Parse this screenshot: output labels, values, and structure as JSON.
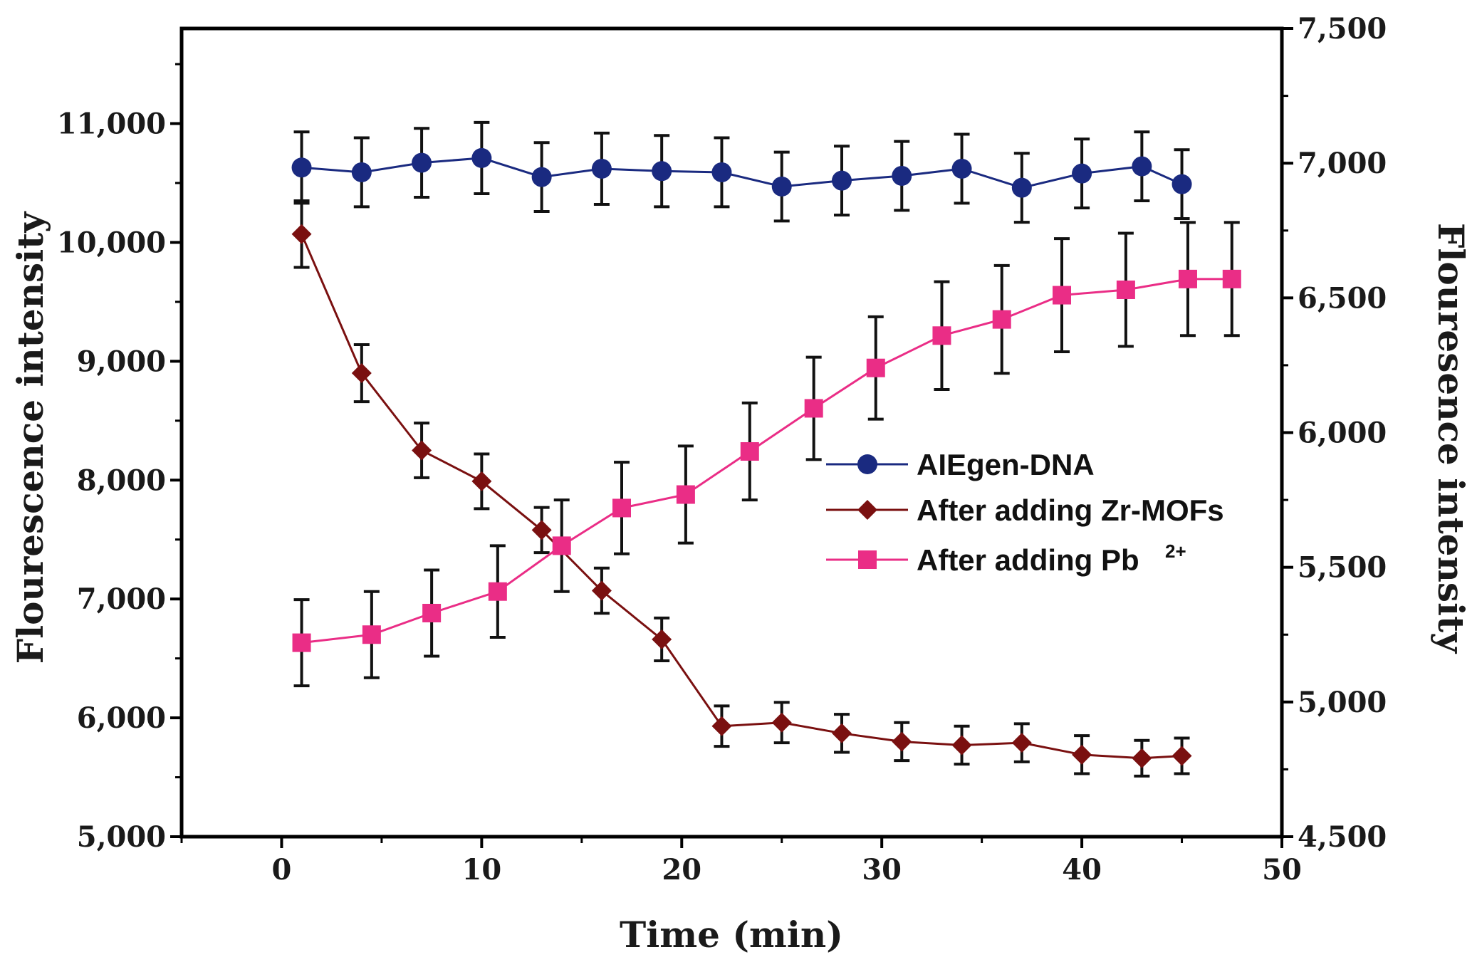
{
  "chart_data": {
    "type": "line",
    "title": "",
    "xlabel": "Time (min)",
    "ylabel_left": "Flourescence intensity",
    "ylabel_right": "Flouresence intensity",
    "xlim": [
      -5,
      50
    ],
    "ylim_left": [
      5000,
      11800
    ],
    "ylim_right": [
      4500,
      7500
    ],
    "x_ticks": [
      0,
      10,
      20,
      30,
      40,
      50
    ],
    "x_tick_labels": [
      "0",
      "10",
      "20",
      "30",
      "40",
      "50"
    ],
    "y_left_ticks": [
      5000,
      6000,
      7000,
      8000,
      9000,
      10000,
      11000
    ],
    "y_left_tick_labels": [
      "5,000",
      "6,000",
      "7,000",
      "8,000",
      "9,000",
      "10,000",
      "11,000"
    ],
    "y_right_ticks": [
      4500,
      5000,
      5500,
      6000,
      6500,
      7000,
      7500
    ],
    "y_right_tick_labels": [
      "4,500",
      "5,000",
      "5,500",
      "6,000",
      "6,500",
      "7,000",
      "7,500"
    ],
    "legend_position": "center-right",
    "series": [
      {
        "name": "AIEgen-DNA",
        "axis": "left",
        "color": "#1a2a80",
        "marker": "circle",
        "x": [
          1,
          4,
          7,
          10,
          13,
          16,
          19,
          22,
          25,
          28,
          31,
          34,
          37,
          40,
          43,
          45
        ],
        "y": [
          10630,
          10590,
          10670,
          10710,
          10550,
          10620,
          10600,
          10590,
          10470,
          10520,
          10560,
          10620,
          10460,
          10580,
          10640,
          10490
        ],
        "err": [
          300,
          290,
          290,
          300,
          290,
          300,
          300,
          290,
          290,
          290,
          290,
          290,
          290,
          290,
          290,
          290
        ]
      },
      {
        "name": "After adding Zr-MOFs",
        "axis": "left",
        "color": "#7a1010",
        "marker": "diamond",
        "x": [
          1,
          4,
          7,
          10,
          13,
          16,
          19,
          22,
          25,
          28,
          31,
          34,
          37,
          40,
          43,
          45
        ],
        "y": [
          10070,
          8900,
          8250,
          7990,
          7580,
          7070,
          6660,
          5930,
          5960,
          5870,
          5800,
          5770,
          5790,
          5690,
          5660,
          5680
        ],
        "err": [
          280,
          240,
          230,
          230,
          190,
          190,
          180,
          170,
          170,
          160,
          160,
          160,
          160,
          160,
          150,
          150
        ]
      },
      {
        "name": "After adding Pb",
        "name_superscript": "2+",
        "axis": "right",
        "color": "#ea2d86",
        "marker": "square",
        "x": [
          1,
          4.5,
          7.5,
          10.8,
          14,
          17,
          20.2,
          23.4,
          26.6,
          29.7,
          33,
          36,
          39,
          42.2,
          45.3,
          47.5
        ],
        "y": [
          5220,
          5250,
          5330,
          5410,
          5580,
          5720,
          5770,
          5930,
          6090,
          6240,
          6360,
          6420,
          6510,
          6530,
          6570,
          6570
        ],
        "err": [
          160,
          160,
          160,
          170,
          170,
          170,
          180,
          180,
          190,
          190,
          200,
          200,
          210,
          210,
          210,
          210
        ]
      }
    ]
  }
}
